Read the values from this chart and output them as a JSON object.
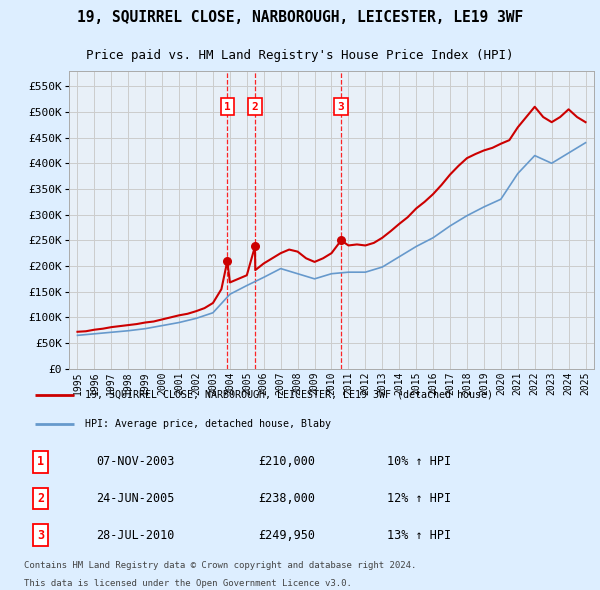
{
  "title": "19, SQUIRREL CLOSE, NARBOROUGH, LEICESTER, LE19 3WF",
  "subtitle": "Price paid vs. HM Land Registry's House Price Index (HPI)",
  "legend_line1": "19, SQUIRREL CLOSE, NARBOROUGH, LEICESTER, LE19 3WF (detached house)",
  "legend_line2": "HPI: Average price, detached house, Blaby",
  "footer1": "Contains HM Land Registry data © Crown copyright and database right 2024.",
  "footer2": "This data is licensed under the Open Government Licence v3.0.",
  "transactions": [
    {
      "num": 1,
      "date": "07-NOV-2003",
      "price": "£210,000",
      "pct": "10% ↑ HPI",
      "year": 2003.85
    },
    {
      "num": 2,
      "date": "24-JUN-2005",
      "price": "£238,000",
      "pct": "12% ↑ HPI",
      "year": 2005.48
    },
    {
      "num": 3,
      "date": "28-JUL-2010",
      "price": "£249,950",
      "pct": "13% ↑ HPI",
      "year": 2010.57
    }
  ],
  "red_line_color": "#cc0000",
  "blue_line_color": "#6699cc",
  "background_color": "#ddeeff",
  "plot_bg_color": "#e8f0f8",
  "grid_color": "#cccccc",
  "ylim": [
    0,
    580000
  ],
  "yticks": [
    0,
    50000,
    100000,
    150000,
    200000,
    250000,
    300000,
    350000,
    400000,
    450000,
    500000,
    550000
  ],
  "hpi_years": [
    1995,
    1996,
    1997,
    1998,
    1999,
    2000,
    2001,
    2002,
    2003,
    2004,
    2005,
    2006,
    2007,
    2008,
    2009,
    2010,
    2011,
    2012,
    2013,
    2014,
    2015,
    2016,
    2017,
    2018,
    2019,
    2020,
    2021,
    2022,
    2023,
    2024,
    2025
  ],
  "hpi_values": [
    65000,
    68000,
    71000,
    74000,
    78000,
    84000,
    90000,
    98000,
    109000,
    145000,
    162000,
    178000,
    195000,
    185000,
    175000,
    185000,
    188000,
    188000,
    198000,
    218000,
    238000,
    255000,
    278000,
    298000,
    315000,
    330000,
    380000,
    415000,
    400000,
    420000,
    440000
  ],
  "property_years": [
    1995.0,
    1995.5,
    1996.0,
    1996.5,
    1997.0,
    1997.5,
    1998.0,
    1998.5,
    1999.0,
    1999.5,
    2000.0,
    2000.5,
    2001.0,
    2001.5,
    2002.0,
    2002.5,
    2003.0,
    2003.5,
    2003.85,
    2004.0,
    2004.5,
    2005.0,
    2005.48,
    2005.5,
    2006.0,
    2006.5,
    2007.0,
    2007.5,
    2008.0,
    2008.5,
    2009.0,
    2009.5,
    2010.0,
    2010.57,
    2011.0,
    2011.5,
    2012.0,
    2012.5,
    2013.0,
    2013.5,
    2014.0,
    2014.5,
    2015.0,
    2015.5,
    2016.0,
    2016.5,
    2017.0,
    2017.5,
    2018.0,
    2018.5,
    2019.0,
    2019.5,
    2020.0,
    2020.5,
    2021.0,
    2021.5,
    2022.0,
    2022.5,
    2023.0,
    2023.5,
    2024.0,
    2024.5,
    2025.0
  ],
  "property_values": [
    72000,
    73000,
    76000,
    78000,
    81000,
    83000,
    85000,
    87000,
    90000,
    92000,
    96000,
    100000,
    104000,
    107000,
    112000,
    118000,
    128000,
    155000,
    210000,
    168000,
    175000,
    182000,
    238000,
    192000,
    205000,
    215000,
    225000,
    232000,
    228000,
    215000,
    208000,
    215000,
    225000,
    249950,
    240000,
    242000,
    240000,
    245000,
    255000,
    268000,
    282000,
    295000,
    312000,
    325000,
    340000,
    358000,
    378000,
    395000,
    410000,
    418000,
    425000,
    430000,
    438000,
    445000,
    470000,
    490000,
    510000,
    490000,
    480000,
    490000,
    505000,
    490000,
    480000
  ]
}
